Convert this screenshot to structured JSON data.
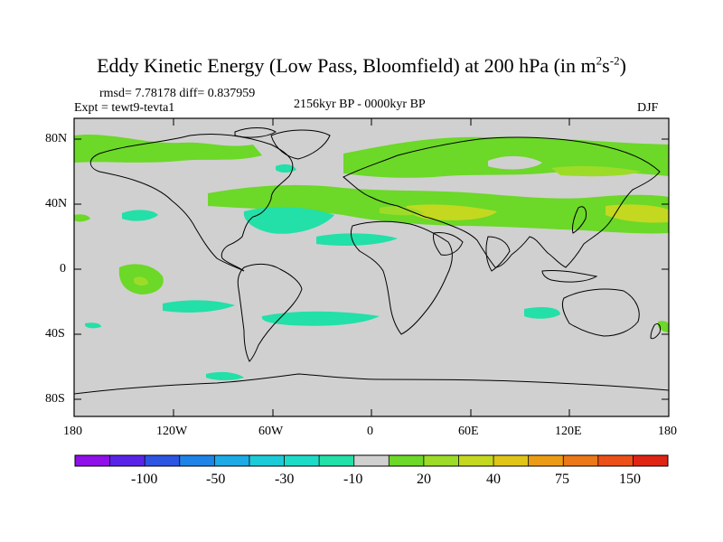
{
  "title": {
    "main": "Eddy Kinetic Energy (Low Pass, Bloomfield) at 200 hPa (in m",
    "sup1": "2",
    "mid": "s",
    "sup2": "-2",
    "end": ")"
  },
  "stats": "rmsd= 7.78178  diff= 0.837959",
  "experiment": "Expt = tewt9-tevta1",
  "period": "2156kyr BP - 0000kyr BP",
  "season": "DJF",
  "map": {
    "lat_labels": [
      "80N",
      "40N",
      "0",
      "40S",
      "80S"
    ],
    "lon_labels": [
      "180",
      "120W",
      "60W",
      "0",
      "60E",
      "120E",
      "180"
    ]
  },
  "colorbar": {
    "colors": [
      "#8f10e8",
      "#5a24e8",
      "#2d55e4",
      "#1e84e8",
      "#1cabe6",
      "#1ccbd8",
      "#1cdcc8",
      "#22e0a8",
      "#d0d0d0",
      "#6cd828",
      "#9cdc28",
      "#c4d820",
      "#e0c418",
      "#ec9c14",
      "#ec7818",
      "#ec5018",
      "#e02414"
    ],
    "labels": [
      "-100",
      "-50",
      "-30",
      "-10",
      "20",
      "40",
      "75",
      "150"
    ]
  },
  "legend_colors": {
    "ocean_land": "#d0d0d0",
    "green": "#6cd828",
    "light_green": "#9cdc28",
    "yellow": "#c4d820",
    "cyan": "#22e0a8"
  }
}
